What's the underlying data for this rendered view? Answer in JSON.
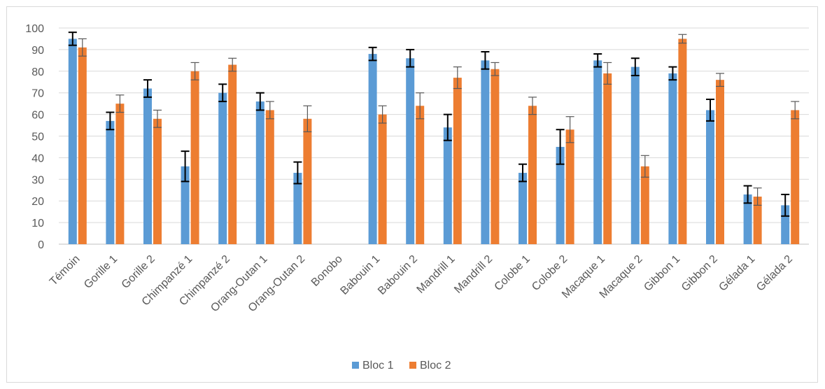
{
  "chart_data": {
    "type": "bar",
    "title": "",
    "xlabel": "",
    "ylabel": "",
    "ylim": [
      0,
      100
    ],
    "yticks": [
      0,
      10,
      20,
      30,
      40,
      50,
      60,
      70,
      80,
      90,
      100
    ],
    "grid": true,
    "legend_position": "bottom",
    "categories": [
      "Témoin",
      "Gorille 1",
      "Gorille 2",
      "Chimpanzé 1",
      "Chimpanzé 2",
      "Orang-Outan 1",
      "Orang-Outan 2",
      "Bonobo",
      "Babouin 1",
      "Babouin 2",
      "Mandrill 1",
      "Mandrill 2",
      "Colobe 1",
      "Colobe 2",
      "Macaque 1",
      "Macaque 2",
      "Gibbon 1",
      "Gibbon 2",
      "Gélada 1",
      "Gélada 2"
    ],
    "series": [
      {
        "name": "Bloc 1",
        "color": "#5b9bd5",
        "error_color": "#000000",
        "values": [
          95,
          57,
          72,
          36,
          70,
          66,
          33,
          0,
          88,
          86,
          54,
          85,
          33,
          45,
          85,
          82,
          79,
          62,
          23,
          18
        ],
        "errors": [
          3,
          4,
          4,
          7,
          4,
          4,
          5,
          0,
          3,
          4,
          6,
          4,
          4,
          8,
          3,
          4,
          3,
          5,
          4,
          5
        ]
      },
      {
        "name": "Bloc 2",
        "color": "#ed7d31",
        "error_color": "#595959",
        "values": [
          91,
          65,
          58,
          80,
          83,
          62,
          58,
          0,
          60,
          64,
          77,
          81,
          64,
          53,
          79,
          36,
          95,
          76,
          22,
          62
        ],
        "errors": [
          4,
          4,
          4,
          4,
          3,
          4,
          6,
          0,
          4,
          6,
          5,
          3,
          4,
          6,
          5,
          5,
          2,
          3,
          4,
          4
        ]
      }
    ]
  }
}
